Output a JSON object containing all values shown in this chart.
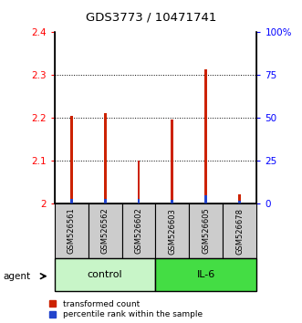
{
  "title": "GDS3773 / 10471741",
  "samples": [
    "GSM526561",
    "GSM526562",
    "GSM526602",
    "GSM526603",
    "GSM526605",
    "GSM526678"
  ],
  "red_values": [
    2.205,
    2.212,
    2.1,
    2.196,
    2.313,
    2.022
  ],
  "blue_values": [
    2.5,
    2.8,
    2.8,
    2.2,
    5.0,
    1.8
  ],
  "ylim_left": [
    2.0,
    2.4
  ],
  "ylim_right": [
    0,
    100
  ],
  "yticks_left": [
    2.0,
    2.1,
    2.2,
    2.3,
    2.4
  ],
  "yticks_right": [
    0,
    25,
    50,
    75,
    100
  ],
  "ytick_labels_left": [
    "2",
    "2.1",
    "2.2",
    "2.3",
    "2.4"
  ],
  "ytick_labels_right": [
    "0",
    "25",
    "50",
    "75",
    "100%"
  ],
  "groups": [
    {
      "label": "control",
      "indices": [
        0,
        1,
        2
      ],
      "color": "#c8f5c8"
    },
    {
      "label": "IL-6",
      "indices": [
        3,
        4,
        5
      ],
      "color": "#44dd44"
    }
  ],
  "bar_width": 0.08,
  "red_color": "#cc2200",
  "blue_color": "#2244cc",
  "sample_box_color": "#cccccc",
  "agent_label": "agent",
  "legend_red": "transformed count",
  "legend_blue": "percentile rank within the sample"
}
